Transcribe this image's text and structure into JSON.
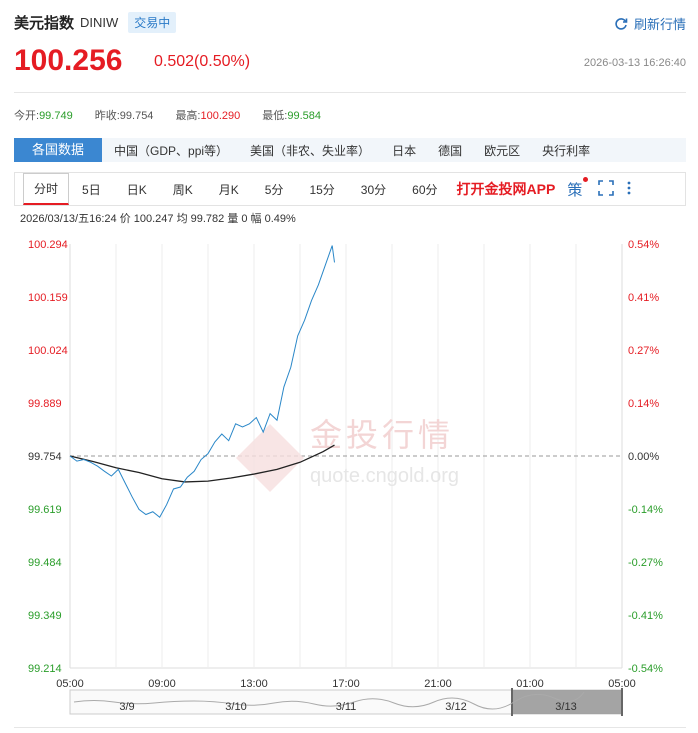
{
  "header": {
    "name": "美元指数",
    "code": "DINIW",
    "badge": "交易中",
    "refresh_label": "刷新行情",
    "price": "100.256",
    "change": "0.502(0.50%)",
    "timestamp": "2026-03-13 16:26:40"
  },
  "stats": [
    {
      "label": "今开:",
      "value": "99.749",
      "color": "green"
    },
    {
      "label": "昨收:",
      "value": "99.754",
      "color": "gray"
    },
    {
      "label": "最高:",
      "value": "100.290",
      "color": "red"
    },
    {
      "label": "最低:",
      "value": "99.584",
      "color": "green"
    }
  ],
  "country_tabs": [
    "各国数据",
    "中国（GDP、ppi等）",
    "美国（非农、失业率）",
    "日本",
    "德国",
    "欧元区",
    "央行利率"
  ],
  "period_tabs": [
    "分时",
    "5日",
    "日K",
    "周K",
    "月K",
    "5分",
    "15分",
    "30分",
    "60分"
  ],
  "app_link": "打开金投网APP",
  "ce_label": "策",
  "info_line": "2026/03/13/五16:24  价 100.247  均 99.782  量 0  幅 0.49%",
  "watermark": {
    "cn": "金投行情",
    "url": "quote.cngold.org"
  },
  "colors": {
    "up": "#e51c23",
    "down": "#2a9d2a",
    "accent": "#3b87d1",
    "line": "#2a87c8",
    "avg": "#222222"
  },
  "chart_data": {
    "type": "line",
    "y_left_ticks": [
      "100.294",
      "100.159",
      "100.024",
      "99.889",
      "99.754",
      "99.619",
      "99.484",
      "99.349",
      "99.214"
    ],
    "y_right_ticks": [
      "0.54%",
      "0.41%",
      "0.27%",
      "0.14%",
      "0.00%",
      "-0.14%",
      "-0.27%",
      "-0.41%",
      "-0.54%"
    ],
    "x_ticks": [
      "05:00",
      "09:00",
      "13:00",
      "17:00",
      "21:00",
      "01:00",
      "05:00"
    ],
    "ylim": [
      99.214,
      100.294
    ],
    "baseline": 99.754,
    "series": [
      {
        "x": [
          0,
          0.3,
          0.6,
          0.9,
          1.2,
          1.5,
          1.8,
          2.1,
          2.4,
          2.7,
          3.0,
          3.3,
          3.6,
          3.9,
          4.2,
          4.5,
          4.8,
          5.1,
          5.4,
          5.7,
          6.0,
          6.3,
          6.6,
          6.9,
          7.2,
          7.5,
          7.8,
          8.1,
          8.4,
          8.7,
          9.0,
          9.3,
          9.6,
          9.9,
          10.2,
          10.5,
          10.8,
          11.1,
          11.4,
          11.5
        ],
        "values": [
          99.754,
          99.741,
          99.745,
          99.738,
          99.728,
          99.715,
          99.703,
          99.72,
          99.685,
          99.65,
          99.618,
          99.605,
          99.612,
          99.598,
          99.63,
          99.67,
          99.675,
          99.7,
          99.715,
          99.745,
          99.76,
          99.79,
          99.81,
          99.793,
          99.836,
          99.828,
          99.836,
          99.852,
          99.815,
          99.862,
          99.845,
          99.93,
          99.98,
          100.06,
          100.1,
          100.15,
          100.19,
          100.24,
          100.29,
          100.247
        ]
      },
      {
        "x": [
          0,
          1,
          2,
          3,
          4,
          5,
          6,
          7,
          8,
          9,
          10,
          11,
          11.5
        ],
        "values": [
          99.754,
          99.74,
          99.724,
          99.712,
          99.696,
          99.688,
          99.69,
          99.698,
          99.708,
          99.72,
          99.738,
          99.765,
          99.782
        ]
      }
    ],
    "navigator_labels": [
      "3/9",
      "3/10",
      "3/11",
      "3/12",
      "3/13"
    ]
  }
}
